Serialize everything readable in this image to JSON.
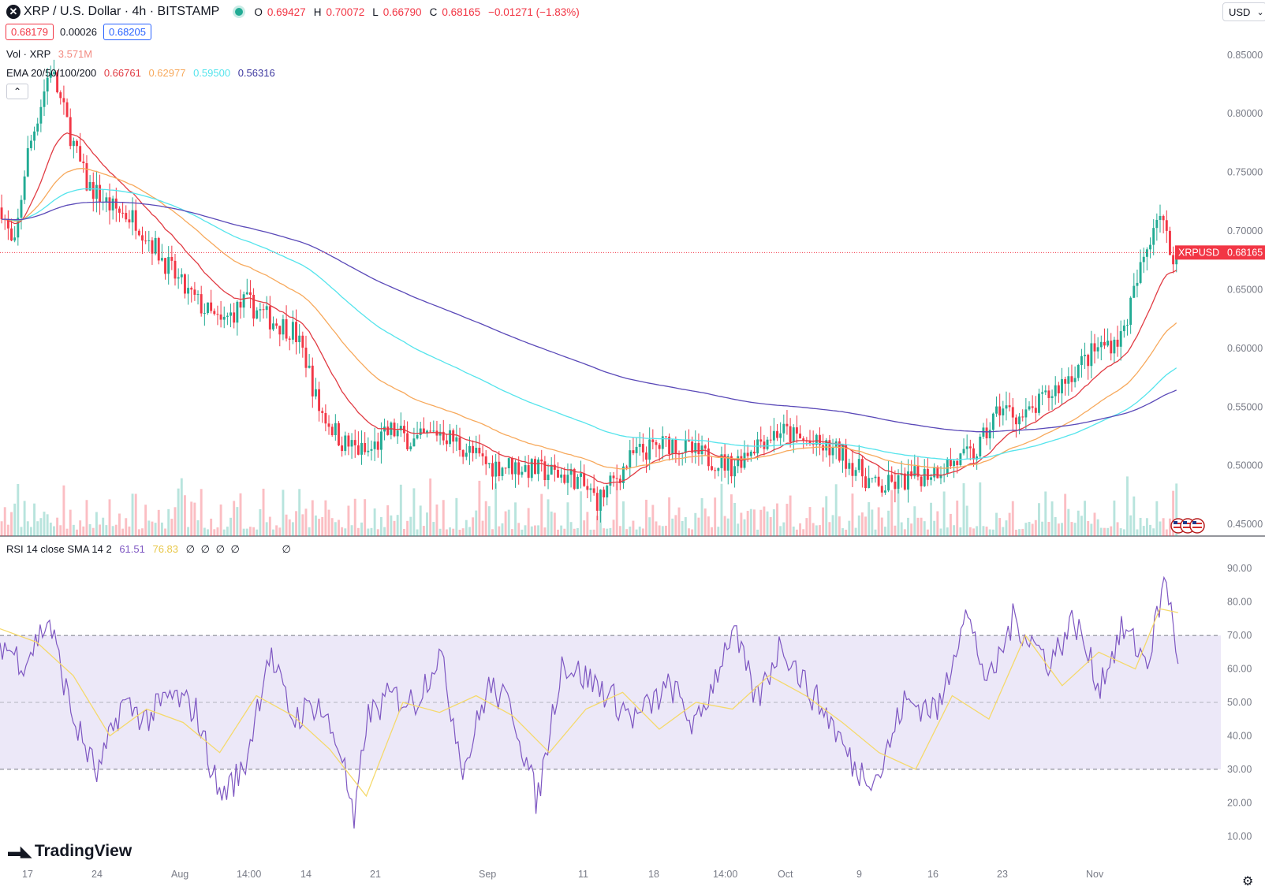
{
  "header": {
    "symbol_icon": "xrp-icon",
    "title": "XRP / U.S. Dollar · 4h · BITSTAMP",
    "ohlc": [
      {
        "key": "O",
        "value": "0.69427"
      },
      {
        "key": "H",
        "value": "0.70072"
      },
      {
        "key": "L",
        "value": "0.66790"
      },
      {
        "key": "C",
        "value": "0.68165"
      }
    ],
    "change": "−0.01271 (−1.83%)",
    "bid": "0.68179",
    "spread": "0.00026",
    "ask": "0.68205",
    "currency": "USD"
  },
  "legends": {
    "volume": {
      "label": "Vol · XRP",
      "value": "3.571M"
    },
    "ema": {
      "label": "EMA 20/50/100/200",
      "values": [
        "0.66761",
        "0.62977",
        "0.59500",
        "0.56316"
      ]
    },
    "rsi": {
      "label": "RSI 14 close SMA 14 2",
      "values": [
        "61.51",
        "76.83"
      ],
      "placeholders": [
        "∅",
        "∅",
        "∅",
        "∅",
        "∅"
      ]
    }
  },
  "price_label": {
    "symbol": "XRPUSD",
    "value": "0.68165"
  },
  "branding": {
    "logo_text": "TradingView"
  },
  "colors": {
    "up": "#22ab94",
    "down": "#f23645",
    "ema20": "#e13b43",
    "ema50": "#f7a95c",
    "ema100": "#55e4ec",
    "ema200": "#5a49b8",
    "rsi": "#7e57c2",
    "rsi_ma": "#f5d96b",
    "rsi_band": "#ece8f8"
  },
  "chart_data": [
    {
      "type": "candlestick",
      "title": "XRP / U.S. Dollar · 4h · BITSTAMP",
      "ylim": [
        0.44,
        0.87
      ],
      "yticks": [
        "0.85000",
        "0.80000",
        "0.75000",
        "0.70000",
        "0.65000",
        "0.60000",
        "0.55000",
        "0.50000",
        "0.45000"
      ],
      "xticks": [
        "17",
        "24",
        "Aug",
        "14:00",
        "14",
        "21",
        "Sep",
        "11",
        "18",
        "14:00",
        "Oct",
        "9",
        "16",
        "23",
        "Nov"
      ],
      "close_path": {
        "x": [
          0,
          0.01,
          0.02,
          0.03,
          0.04,
          0.06,
          0.07,
          0.09,
          0.11,
          0.13,
          0.15,
          0.18,
          0.2,
          0.22,
          0.24,
          0.25,
          0.26,
          0.28,
          0.3,
          0.32,
          0.34,
          0.36,
          0.4,
          0.42,
          0.47,
          0.49,
          0.52,
          0.55,
          0.57,
          0.6,
          0.62,
          0.64,
          0.66,
          0.69,
          0.7,
          0.72,
          0.75,
          0.8,
          0.82,
          0.84,
          0.86,
          0.9,
          0.92,
          0.95,
          0.96
        ],
        "y": [
          0.72,
          0.68,
          0.76,
          0.8,
          0.84,
          0.77,
          0.74,
          0.72,
          0.71,
          0.68,
          0.65,
          0.62,
          0.64,
          0.625,
          0.615,
          0.59,
          0.55,
          0.52,
          0.51,
          0.53,
          0.52,
          0.53,
          0.5,
          0.5,
          0.49,
          0.47,
          0.51,
          0.52,
          0.51,
          0.5,
          0.52,
          0.53,
          0.52,
          0.51,
          0.5,
          0.48,
          0.49,
          0.51,
          0.55,
          0.54,
          0.56,
          0.6,
          0.61,
          0.72,
          0.68165
        ]
      },
      "series": [
        {
          "name": "EMA 20",
          "last": 0.66761
        },
        {
          "name": "EMA 50",
          "last": 0.62977
        },
        {
          "name": "EMA 100",
          "last": 0.595
        },
        {
          "name": "EMA 200",
          "last": 0.56316
        }
      ],
      "volume_last": "3.571M",
      "current_price": 0.68165
    },
    {
      "type": "line",
      "title": "RSI 14 close SMA 14 2",
      "ylim": [
        5,
        95
      ],
      "yticks": [
        "90.00",
        "80.00",
        "70.00",
        "60.00",
        "50.00",
        "40.00",
        "30.00",
        "20.00",
        "10.00"
      ],
      "bands": [
        30,
        50,
        70
      ],
      "series": [
        {
          "name": "RSI",
          "last": 61.51,
          "x": [
            0,
            0.02,
            0.04,
            0.06,
            0.08,
            0.1,
            0.12,
            0.14,
            0.16,
            0.18,
            0.2,
            0.22,
            0.24,
            0.26,
            0.28,
            0.29,
            0.3,
            0.32,
            0.34,
            0.36,
            0.38,
            0.4,
            0.42,
            0.44,
            0.46,
            0.49,
            0.52,
            0.55,
            0.57,
            0.6,
            0.62,
            0.64,
            0.66,
            0.68,
            0.7,
            0.72,
            0.74,
            0.77,
            0.79,
            0.81,
            0.83,
            0.86,
            0.88,
            0.9,
            0.92,
            0.94,
            0.955,
            0.965
          ],
          "y": [
            68,
            62,
            75,
            45,
            28,
            50,
            45,
            52,
            48,
            22,
            30,
            65,
            45,
            50,
            35,
            12,
            45,
            52,
            50,
            65,
            30,
            55,
            48,
            20,
            62,
            55,
            45,
            55,
            42,
            72,
            50,
            68,
            55,
            45,
            30,
            28,
            50,
            48,
            78,
            55,
            75,
            62,
            75,
            55,
            72,
            62,
            88,
            61.51
          ]
        },
        {
          "name": "RSI-based MA",
          "last": 76.83,
          "x": [
            0,
            0.03,
            0.06,
            0.09,
            0.12,
            0.15,
            0.18,
            0.21,
            0.24,
            0.27,
            0.3,
            0.33,
            0.36,
            0.39,
            0.42,
            0.45,
            0.48,
            0.51,
            0.54,
            0.57,
            0.6,
            0.63,
            0.66,
            0.69,
            0.72,
            0.75,
            0.78,
            0.81,
            0.84,
            0.87,
            0.9,
            0.93,
            0.95,
            0.965
          ],
          "y": [
            72,
            68,
            58,
            40,
            48,
            44,
            35,
            52,
            46,
            36,
            22,
            50,
            47,
            52,
            46,
            35,
            48,
            53,
            42,
            50,
            48,
            58,
            52,
            44,
            35,
            30,
            52,
            45,
            70,
            55,
            65,
            60,
            78,
            76.83
          ]
        }
      ]
    }
  ]
}
